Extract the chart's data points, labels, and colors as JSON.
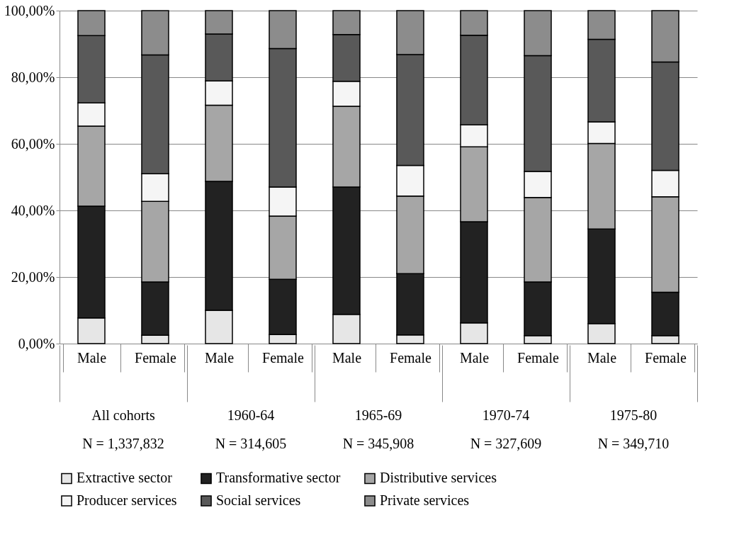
{
  "chart_data": {
    "type": "bar",
    "stacked": true,
    "categories": [
      "Male",
      "Female",
      "Male",
      "Female",
      "Male",
      "Female",
      "Male",
      "Female",
      "Male",
      "Female"
    ],
    "series": [
      {
        "name": "Extractive sector",
        "color": "#e6e6e6",
        "values": [
          7.7,
          2.5,
          10.0,
          2.7,
          8.8,
          2.6,
          6.2,
          2.4,
          6.0,
          2.4
        ]
      },
      {
        "name": "Transformative sector",
        "color": "#222222",
        "values": [
          33.6,
          16.0,
          38.7,
          16.6,
          38.2,
          18.4,
          30.4,
          16.1,
          28.4,
          13.0
        ]
      },
      {
        "name": "Distributive services",
        "color": "#a6a6a6",
        "values": [
          24.0,
          24.2,
          22.9,
          19.0,
          24.3,
          23.3,
          22.5,
          25.4,
          25.7,
          28.7
        ]
      },
      {
        "name": "Producer services",
        "color": "#f5f5f5",
        "values": [
          7.0,
          8.3,
          7.3,
          8.7,
          7.5,
          9.2,
          6.6,
          7.8,
          6.5,
          7.9
        ]
      },
      {
        "name": "Social services",
        "color": "#595959",
        "values": [
          20.2,
          35.7,
          14.1,
          41.6,
          14.0,
          33.3,
          26.9,
          34.8,
          24.8,
          32.6
        ]
      },
      {
        "name": "Private services",
        "color": "#8c8c8c",
        "values": [
          7.5,
          13.3,
          7.0,
          11.4,
          7.2,
          13.2,
          7.4,
          13.5,
          8.6,
          15.4
        ]
      }
    ],
    "ylim": [
      0,
      100
    ],
    "yticks": [
      {
        "value": 0,
        "label": "0,00%"
      },
      {
        "value": 20,
        "label": "20,00%"
      },
      {
        "value": 40,
        "label": "40,00%"
      },
      {
        "value": 60,
        "label": "60,00%"
      },
      {
        "value": 80,
        "label": "80,00%"
      },
      {
        "value": 100,
        "label": "100,00%"
      }
    ],
    "grid": "y",
    "legend": "bottom",
    "annotations": [
      "All cohorts",
      "N = 1,337,832",
      "1960-64",
      "N = 314,605",
      "1965-69",
      "N = 345,908",
      "1970-74",
      "N = 327,609",
      "1975-80",
      "N = 349,710"
    ]
  }
}
